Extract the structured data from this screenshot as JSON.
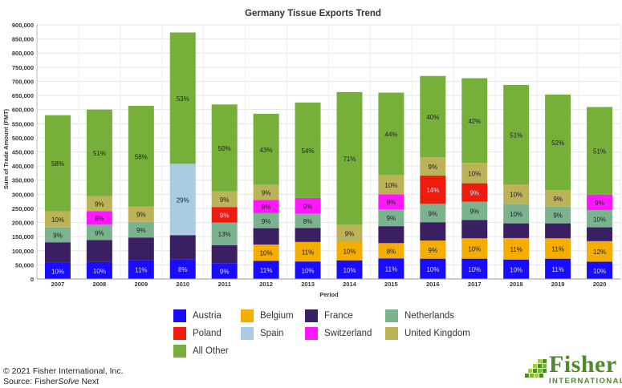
{
  "chart_data": {
    "type": "bar",
    "stacked": true,
    "title": "Germany Tissue Exports Trend",
    "xlabel": "Period",
    "ylabel": "Sum of Trade Amount (FMT)",
    "ylim": [
      0,
      900000
    ],
    "yticks": [
      0,
      50000,
      100000,
      150000,
      200000,
      250000,
      300000,
      350000,
      400000,
      450000,
      500000,
      550000,
      600000,
      650000,
      700000,
      750000,
      800000,
      850000,
      900000
    ],
    "ytick_labels": [
      "0",
      "50,000",
      "100,000",
      "150,000",
      "200,000",
      "250,000",
      "300,000",
      "350,000",
      "400,000",
      "450,000",
      "500,000",
      "550,000",
      "600,000",
      "650,000",
      "700,000",
      "750,000",
      "800,000",
      "850,000",
      "900,000"
    ],
    "grid": true,
    "legend_position": "bottom",
    "categories": [
      "2007",
      "2008",
      "2009",
      "2010",
      "2011",
      "2012",
      "2013",
      "2014",
      "2015",
      "2016",
      "2017",
      "2018",
      "2019",
      "2020"
    ],
    "series": [
      {
        "name": "Austria",
        "color": "#1a0dff",
        "values": [
          58000,
          60000,
          67000,
          70000,
          56000,
          64000,
          62000,
          66000,
          73000,
          72000,
          72000,
          69000,
          72000,
          61000
        ],
        "labels": [
          "10%",
          "10%",
          "11%",
          "8%",
          "9%",
          "11%",
          "10%",
          "10%",
          "11%",
          "10%",
          "10%",
          "10%",
          "11%",
          "10%"
        ]
      },
      {
        "name": "Belgium",
        "color": "#f5ae00",
        "values": [
          0,
          0,
          0,
          0,
          0,
          58000,
          69000,
          66000,
          54000,
          64000,
          72000,
          76000,
          72000,
          73000
        ],
        "labels": [
          "",
          "",
          "",
          "",
          "",
          "10%",
          "11%",
          "10%",
          "8%",
          "9%",
          "10%",
          "11%",
          "11%",
          "12%"
        ]
      },
      {
        "name": "France",
        "color": "#3b1f63",
        "values": [
          72000,
          78000,
          80000,
          85000,
          64000,
          58000,
          50000,
          0,
          60000,
          65000,
          65000,
          52000,
          53000,
          49000
        ],
        "labels": [
          "",
          "",
          "",
          "",
          "",
          "",
          "",
          "",
          "",
          "",
          "",
          "",
          "",
          ""
        ]
      },
      {
        "name": "Netherlands",
        "color": "#7bb38e",
        "values": [
          52000,
          54000,
          55000,
          0,
          80000,
          53000,
          50000,
          0,
          60000,
          65000,
          65000,
          69000,
          59000,
          61000
        ],
        "labels": [
          "9%",
          "9%",
          "9%",
          "",
          "13%",
          "9%",
          "8%",
          "",
          "9%",
          "9%",
          "9%",
          "10%",
          "9%",
          "10%"
        ]
      },
      {
        "name": "Poland",
        "color": "#ee1c0e",
        "values": [
          0,
          0,
          0,
          0,
          55000,
          0,
          0,
          0,
          0,
          100000,
          65000,
          0,
          0,
          0
        ],
        "labels": [
          "",
          "",
          "",
          "",
          "9%",
          "",
          "",
          "",
          "",
          "14%",
          "9%",
          "",
          "",
          ""
        ]
      },
      {
        "name": "Spain",
        "color": "#a9cce3",
        "values": [
          0,
          0,
          0,
          253000,
          0,
          0,
          0,
          0,
          0,
          0,
          0,
          0,
          0,
          0
        ],
        "labels": [
          "",
          "",
          "",
          "29%",
          "",
          "",
          "",
          "",
          "",
          "",
          "",
          "",
          "",
          ""
        ]
      },
      {
        "name": "Switzerland",
        "color": "#ff17ff",
        "values": [
          0,
          48000,
          0,
          0,
          0,
          47000,
          56000,
          0,
          53000,
          0,
          0,
          0,
          0,
          55000
        ],
        "labels": [
          "",
          "8%",
          "",
          "",
          "",
          "8%",
          "9%",
          "",
          "8%",
          "",
          "",
          "",
          "",
          "9%"
        ]
      },
      {
        "name": "United Kingdom",
        "color": "#bcb258",
        "values": [
          58000,
          54000,
          55000,
          0,
          55000,
          53000,
          0,
          60000,
          67000,
          65000,
          72000,
          69000,
          59000,
          0
        ],
        "labels": [
          "10%",
          "9%",
          "9%",
          "",
          "9%",
          "9%",
          "",
          "9%",
          "10%",
          "9%",
          "10%",
          "10%",
          "9%",
          ""
        ]
      },
      {
        "name": "All Other",
        "color": "#76b03a",
        "values": [
          340000,
          306000,
          356000,
          465000,
          308000,
          252000,
          338000,
          470000,
          293000,
          288000,
          300000,
          352000,
          338000,
          310000
        ],
        "labels": [
          "58%",
          "51%",
          "58%",
          "53%",
          "50%",
          "43%",
          "54%",
          "71%",
          "44%",
          "40%",
          "42%",
          "51%",
          "52%",
          "51%"
        ]
      }
    ]
  },
  "footer": {
    "copyright": "© 2021 Fisher International, Inc.",
    "source_prefix": "Source: Fisher",
    "source_italic": "Solve",
    "source_suffix": " Next"
  },
  "logo": {
    "name": "Fisher",
    "subtitle": "INTERNATIONAL"
  }
}
